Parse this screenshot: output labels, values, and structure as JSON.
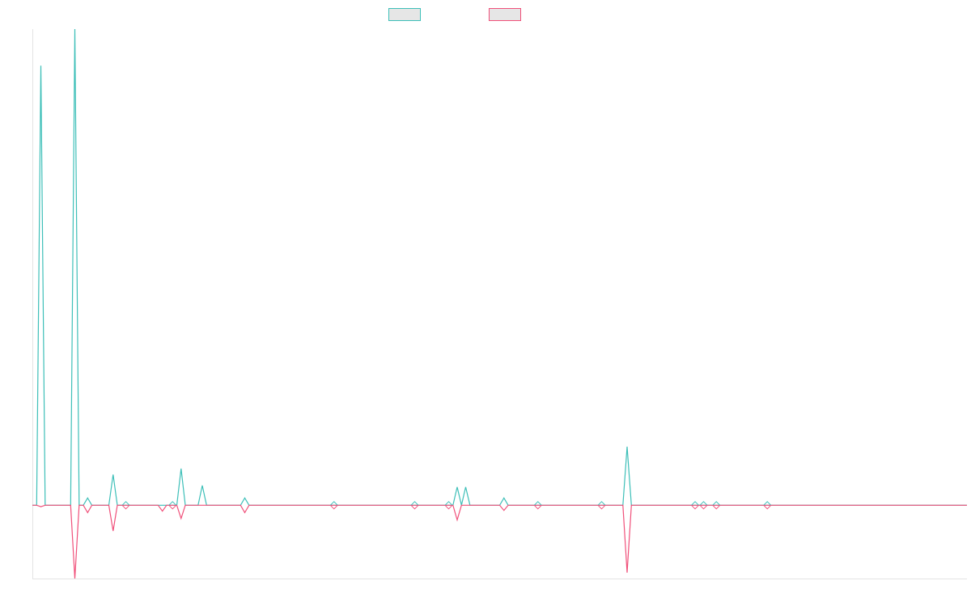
{
  "colors": {
    "series_a": "#3dbfb8",
    "series_b": "#f0507a",
    "axis": "#e4e4e4",
    "legend_fill": "#e6e6e6"
  },
  "legend": {
    "position": "top-center",
    "items": [
      {
        "label": "",
        "color": "#3dbfb8"
      },
      {
        "label": "",
        "color": "#f0507a"
      }
    ]
  },
  "chart_data": {
    "type": "line",
    "title": "",
    "xlabel": "",
    "ylabel": "",
    "xlim": [
      0,
      110
    ],
    "ylim": [
      -100,
      650
    ],
    "grid": false,
    "x_spikes": [
      1,
      5,
      6.5,
      9.5,
      11,
      15.3,
      16.5,
      17.5,
      20,
      25,
      35.5,
      45,
      49,
      50,
      51,
      55.5,
      59.5,
      67,
      70,
      78,
      79,
      80.5,
      86.5
    ],
    "series": [
      {
        "name": "",
        "values": [
          600,
          650,
          10,
          42,
          0,
          0,
          0,
          50,
          27,
          10,
          0,
          0,
          0,
          25,
          25,
          10,
          0,
          0,
          80,
          0,
          0,
          0,
          0
        ]
      },
      {
        "name": "",
        "values": [
          -2,
          -100,
          -10,
          -35,
          0,
          -8,
          0,
          -18,
          0,
          -10,
          0,
          0,
          0,
          -20,
          0,
          -7,
          0,
          0,
          -92,
          0,
          0,
          0,
          0
        ]
      }
    ]
  }
}
